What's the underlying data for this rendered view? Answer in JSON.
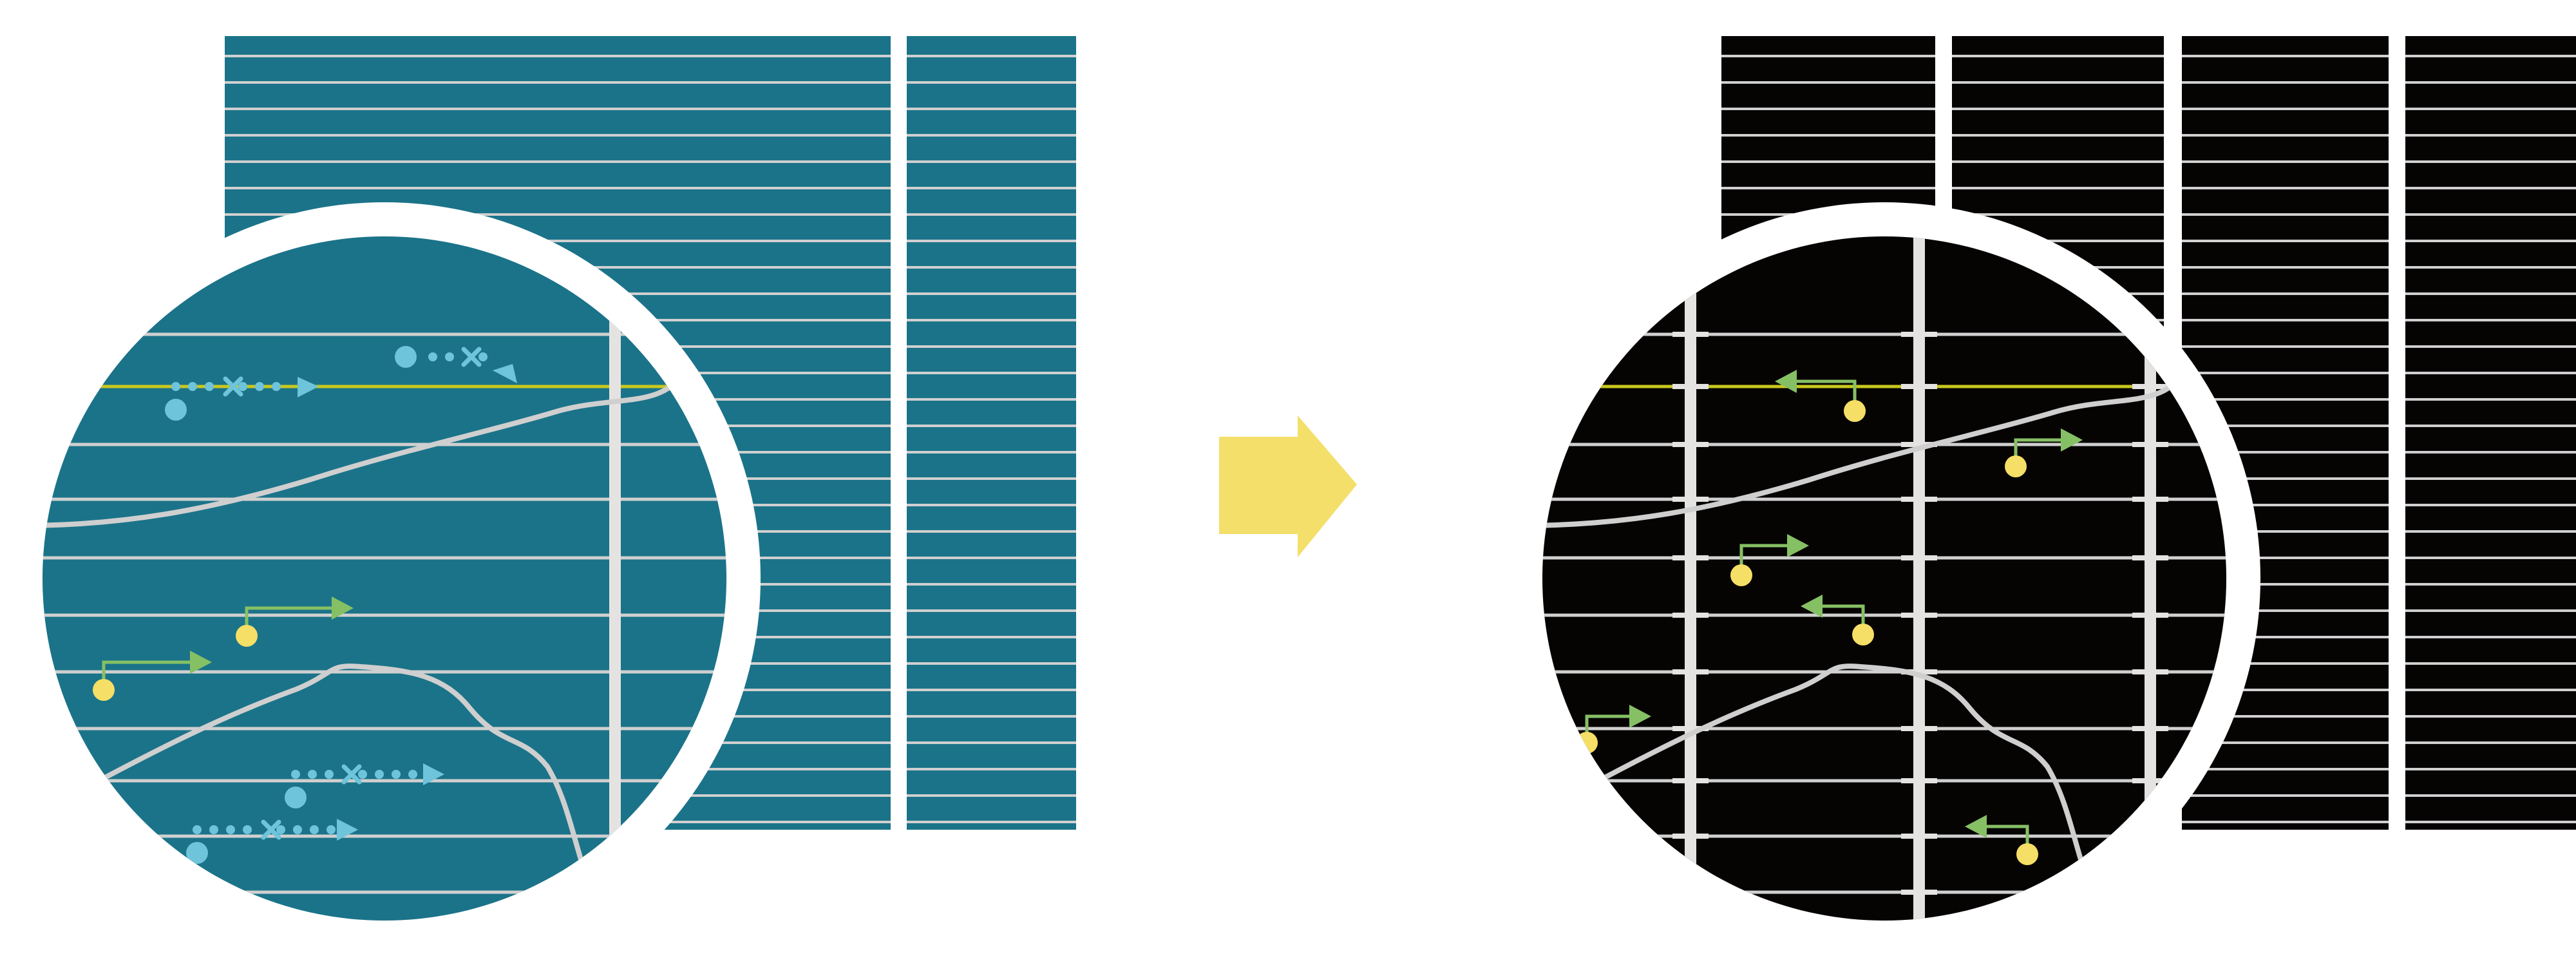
{
  "colors": {
    "background": "#ffffff",
    "left_panel": "#1b7389",
    "right_panel": "#060303",
    "grid_line": "#d0d0d0",
    "bar": "#e4e3e1",
    "highlight_line": "#c8c81e",
    "blue_marker": "#6ec4da",
    "yellow_marker": "#f5df66",
    "green_arrow": "#86c064",
    "transition_arrow": "#f3df6a",
    "curve": "#cfcfcf"
  },
  "icons": {
    "transition": "arrow-right-icon",
    "blue_track": "dotted-arrow-icon",
    "yellow_track": "pin-arrow-icon"
  }
}
